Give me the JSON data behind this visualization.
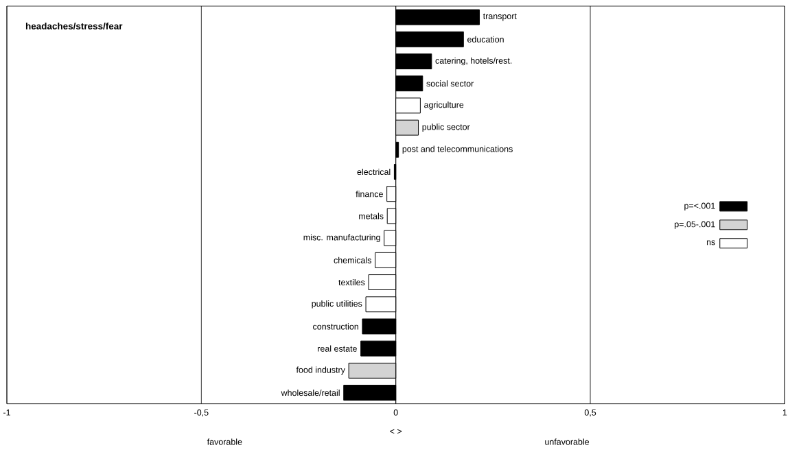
{
  "chart_data": {
    "type": "bar",
    "orientation": "horizontal",
    "title": "headaches/stress/fear",
    "xlabel": "< >",
    "annotations": [
      "favorable",
      "unfavorable"
    ],
    "categories": [
      "transport",
      "education",
      "catering, hotels/rest.",
      "social sector",
      "agriculture",
      "public sector",
      "post and telecommunications",
      "electrical",
      "finance",
      "metals",
      "misc. manufacturing",
      "chemicals",
      "textiles",
      "public utilities",
      "construction",
      "real estate",
      "food industry",
      "wholesale/retail"
    ],
    "series": [
      {
        "name": "p=<.001",
        "color": "#000000",
        "values": [
          0.215,
          0.174,
          0.092,
          0.069,
          null,
          null,
          0.007,
          -0.004,
          null,
          null,
          null,
          null,
          null,
          null,
          -0.086,
          -0.09,
          null,
          -0.134
        ]
      },
      {
        "name": "p=.05-.001",
        "color": "#d3d3d3",
        "values": [
          null,
          null,
          null,
          null,
          null,
          0.058,
          null,
          null,
          null,
          null,
          null,
          null,
          null,
          null,
          null,
          null,
          -0.121,
          null
        ]
      },
      {
        "name": "ns",
        "color": "#ffffff",
        "values": [
          null,
          null,
          null,
          null,
          0.063,
          null,
          null,
          null,
          -0.023,
          -0.022,
          -0.03,
          -0.053,
          -0.07,
          -0.077,
          null,
          null,
          null,
          null
        ]
      }
    ],
    "xlim": [
      -1,
      1
    ],
    "xticks": [
      -1,
      {
        "value": -0.5,
        "label": "-0,5"
      },
      0,
      {
        "value": 0.5,
        "label": "0,5"
      },
      1
    ],
    "grid": "x",
    "legend": "right"
  }
}
